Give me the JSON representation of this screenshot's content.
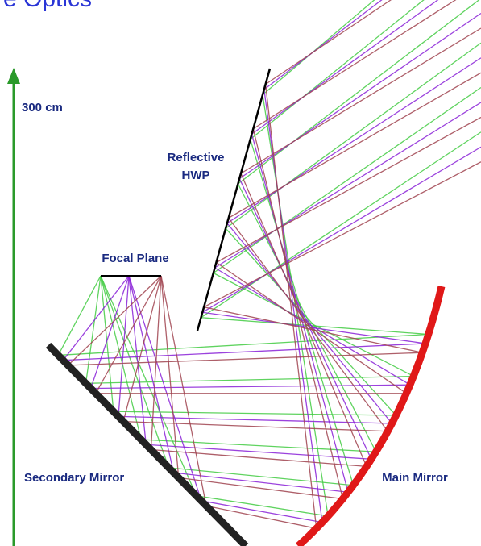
{
  "title": "e Optics",
  "scale_label": "300 cm",
  "hwp_label": [
    "Reflective",
    "HWP"
  ],
  "focal_plane_label": "Focal Plane",
  "secondary_mirror_label": "Secondary Mirror",
  "main_mirror_label": "Main Mirror"
}
